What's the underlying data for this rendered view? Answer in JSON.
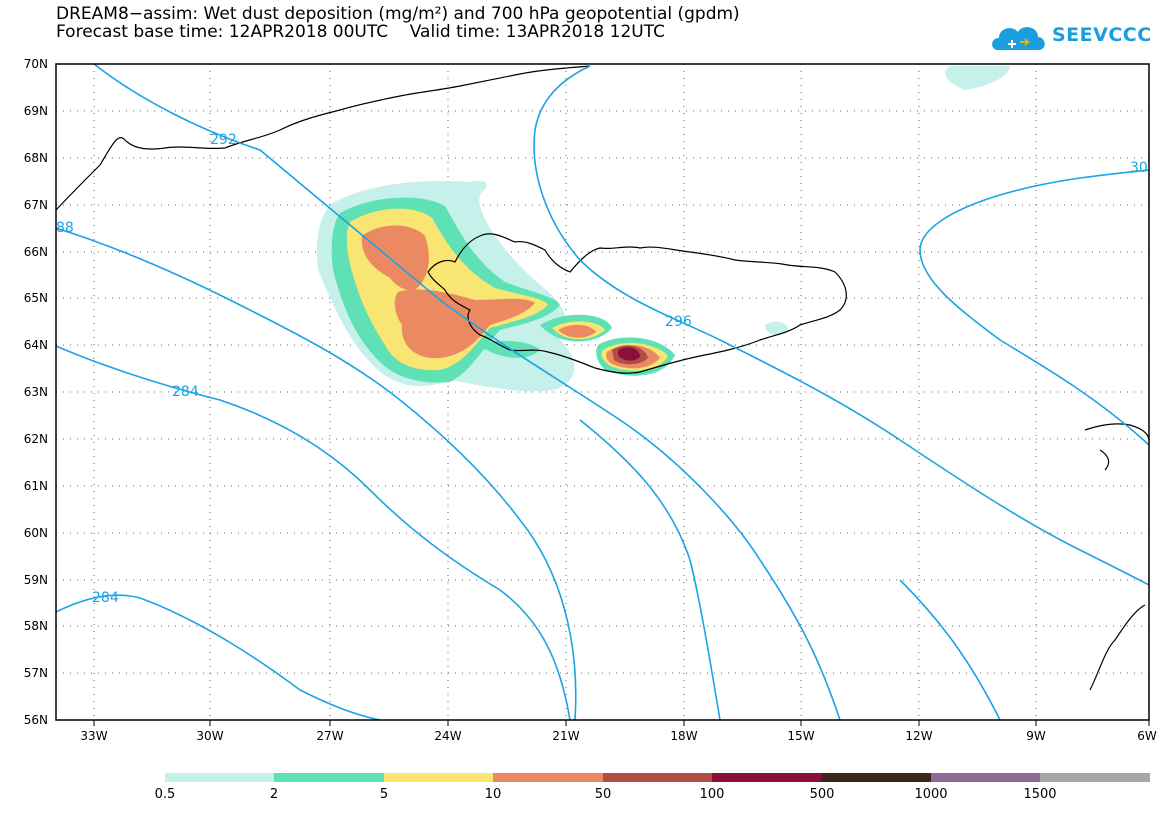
{
  "title": {
    "line1": "DREAM8−assim: Wet dust deposition (mg/m²) and 700 hPa geopotential (gpdm)",
    "line2": "Forecast base time: 12APR2018 00UTC    Valid time: 13APR2018 12UTC"
  },
  "logo": {
    "text": "SEEVCCC",
    "icon": "cloud-icon",
    "color": "#1a9ee0"
  },
  "map": {
    "lat_labels": [
      "70N",
      "69N",
      "68N",
      "67N",
      "66N",
      "65N",
      "64N",
      "63N",
      "62N",
      "61N",
      "60N",
      "59N",
      "58N",
      "57N",
      "56N"
    ],
    "lon_labels": [
      "33W",
      "30W",
      "27W",
      "24W",
      "21W",
      "18W",
      "15W",
      "12W",
      "9W",
      "6W"
    ],
    "extent": {
      "lon_min": -34.5,
      "lon_max": -6,
      "lat_min": 56,
      "lat_max": 70
    },
    "contour_labels": [
      "292",
      "296",
      "88",
      "284",
      "284",
      "30"
    ],
    "contour_color": "#1ba3e6"
  },
  "legend": {
    "labels": [
      "0.5",
      "2",
      "5",
      "10",
      "50",
      "100",
      "500",
      "1000",
      "1500"
    ],
    "colors": [
      "#c6f1ea",
      "#5fe0b5",
      "#f8e572",
      "#eb8a62",
      "#b14c47",
      "#8c0f38",
      "#3a261d",
      "#8e6b98",
      "#a6a6a6"
    ]
  }
}
